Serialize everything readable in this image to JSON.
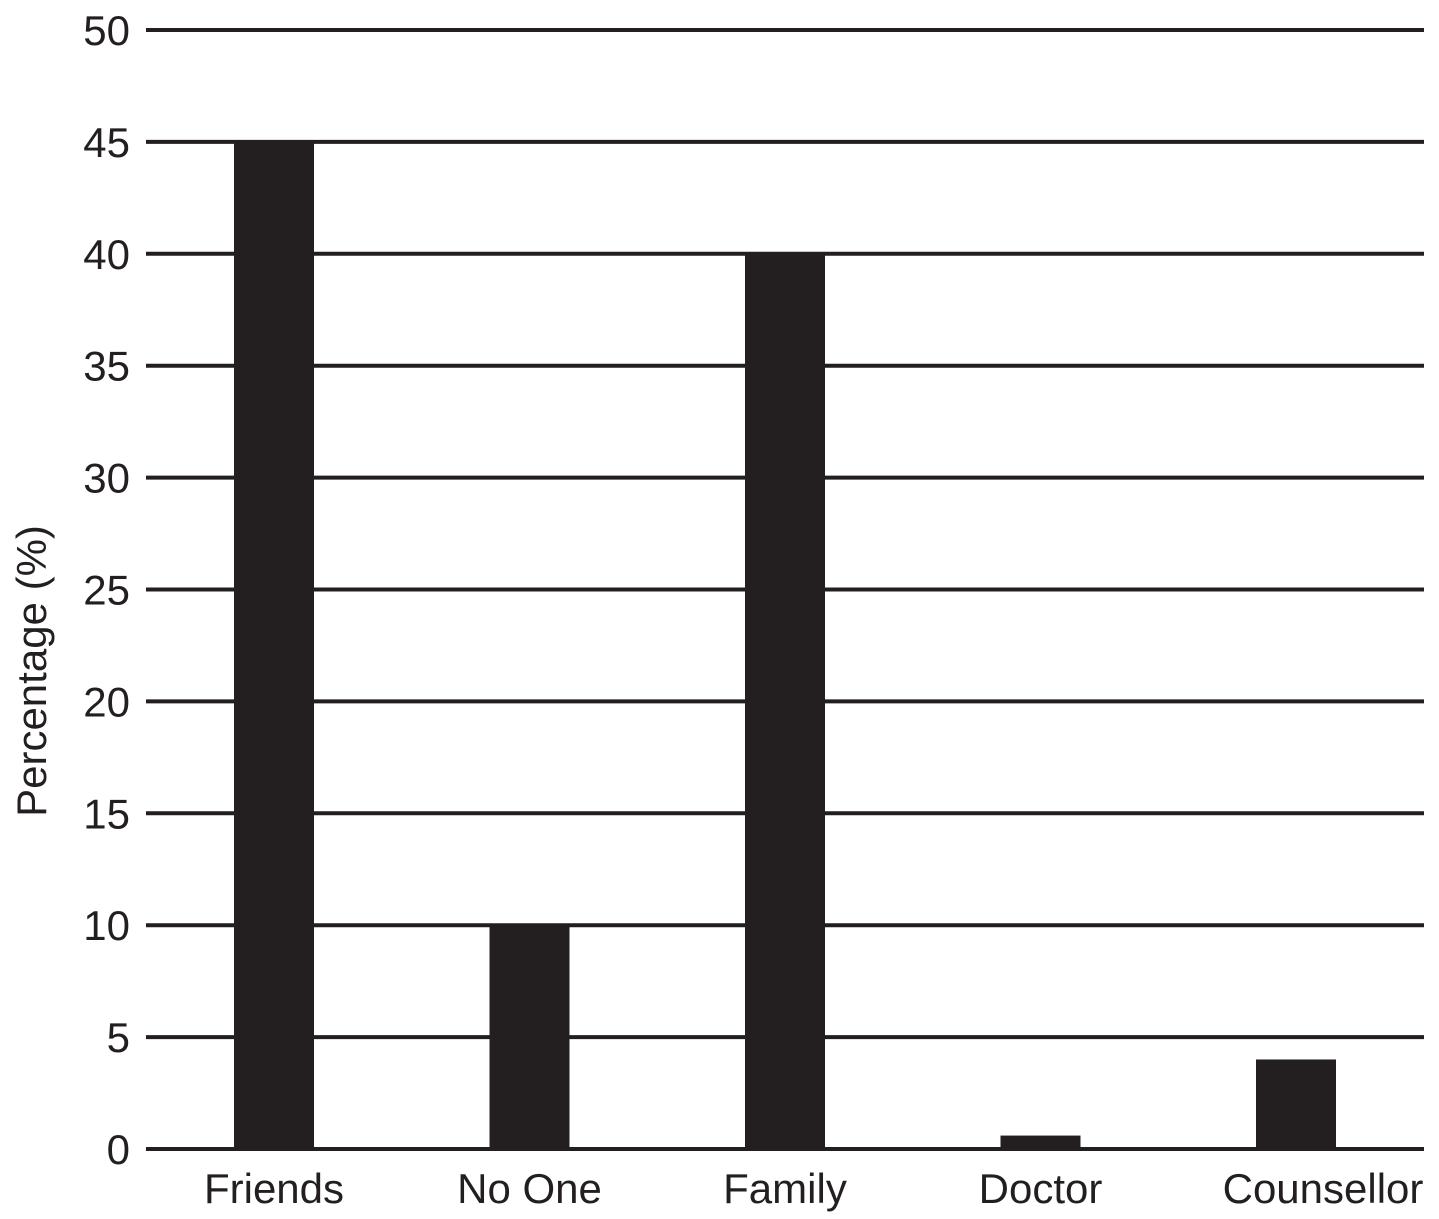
{
  "chart_data": {
    "type": "bar",
    "title": "",
    "xlabel": "",
    "ylabel": "Percentage (%)",
    "categories": [
      "Friends",
      "No One",
      "Family",
      "Doctor",
      "Counsellor"
    ],
    "values": [
      45,
      10,
      40,
      0.6,
      4
    ],
    "ylim": [
      0,
      50
    ],
    "yticks": [
      "0",
      "5",
      "10",
      "15",
      "20",
      "25",
      "30",
      "35",
      "40",
      "45",
      "50"
    ],
    "grid": true,
    "legend": "none",
    "colors": {
      "bar": "#231f20",
      "grid": "#231f20",
      "text": "#231f20"
    }
  }
}
